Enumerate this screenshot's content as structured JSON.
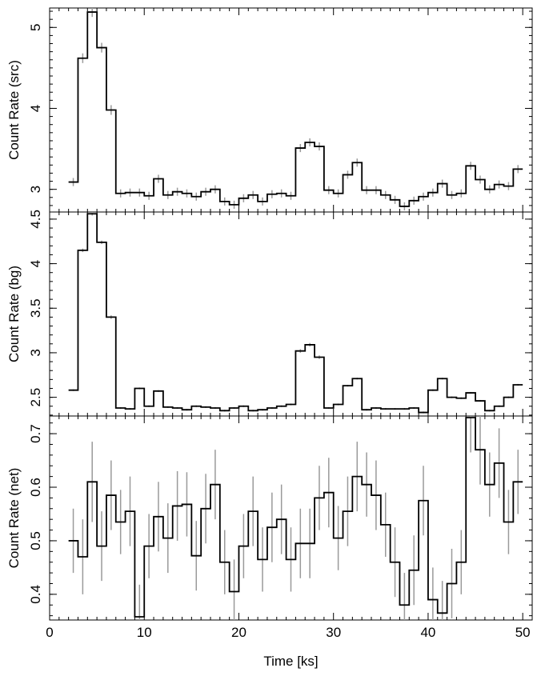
{
  "chart_data": [
    {
      "type": "line",
      "ylabel": "Count Rate (src)",
      "xlim": [
        0,
        51
      ],
      "ylim": [
        2.72,
        5.24
      ],
      "yticks": [
        3,
        4,
        5
      ],
      "y_minor_step": 0.1,
      "x": [
        2.5,
        3.5,
        4.5,
        5.5,
        6.5,
        7.5,
        8.5,
        9.5,
        10.5,
        11.5,
        12.5,
        13.5,
        14.5,
        15.5,
        16.5,
        17.5,
        18.5,
        19.5,
        20.5,
        21.5,
        22.5,
        23.5,
        24.5,
        25.5,
        26.5,
        27.5,
        28.5,
        29.5,
        30.5,
        31.5,
        32.5,
        33.5,
        34.5,
        35.5,
        36.5,
        37.5,
        38.5,
        39.5,
        40.5,
        41.5,
        42.5,
        43.5,
        44.5,
        45.5,
        46.5,
        47.5,
        48.5,
        49.5
      ],
      "values": [
        3.09,
        4.62,
        5.19,
        4.75,
        3.98,
        2.95,
        2.96,
        2.96,
        2.92,
        3.13,
        2.93,
        2.97,
        2.95,
        2.91,
        2.97,
        3.0,
        2.85,
        2.81,
        2.89,
        2.93,
        2.85,
        2.94,
        2.95,
        2.92,
        3.51,
        3.58,
        3.53,
        2.99,
        2.95,
        3.18,
        3.33,
        2.99,
        2.99,
        2.93,
        2.87,
        2.79,
        2.86,
        2.91,
        2.96,
        3.07,
        2.93,
        2.95,
        3.29,
        3.12,
        3.0,
        3.06,
        3.04,
        3.25
      ],
      "errors": [
        0.05,
        0.06,
        0.06,
        0.06,
        0.06,
        0.05,
        0.05,
        0.05,
        0.05,
        0.05,
        0.05,
        0.05,
        0.05,
        0.05,
        0.05,
        0.05,
        0.05,
        0.05,
        0.05,
        0.05,
        0.05,
        0.05,
        0.05,
        0.05,
        0.05,
        0.05,
        0.05,
        0.05,
        0.05,
        0.05,
        0.05,
        0.05,
        0.05,
        0.05,
        0.05,
        0.05,
        0.05,
        0.05,
        0.05,
        0.05,
        0.05,
        0.05,
        0.05,
        0.05,
        0.05,
        0.05,
        0.05,
        0.05
      ]
    },
    {
      "type": "line",
      "ylabel": "Count Rate (bg)",
      "xlim": [
        0,
        51
      ],
      "ylim": [
        2.29,
        4.58
      ],
      "yticks": [
        2.5,
        3,
        3.5,
        4,
        4.5
      ],
      "y_minor_step": 0.1,
      "x": [
        2.5,
        3.5,
        4.5,
        5.5,
        6.5,
        7.5,
        8.5,
        9.5,
        10.5,
        11.5,
        12.5,
        13.5,
        14.5,
        15.5,
        16.5,
        17.5,
        18.5,
        19.5,
        20.5,
        21.5,
        22.5,
        23.5,
        24.5,
        25.5,
        26.5,
        27.5,
        28.5,
        29.5,
        30.5,
        31.5,
        32.5,
        33.5,
        34.5,
        35.5,
        36.5,
        37.5,
        38.5,
        39.5,
        40.5,
        41.5,
        42.5,
        43.5,
        44.5,
        45.5,
        46.5,
        47.5,
        48.5,
        49.5
      ],
      "values": [
        2.58,
        4.15,
        4.56,
        4.24,
        3.4,
        2.38,
        2.37,
        2.6,
        2.4,
        2.57,
        2.39,
        2.38,
        2.36,
        2.4,
        2.39,
        2.38,
        2.35,
        2.38,
        2.4,
        2.35,
        2.36,
        2.38,
        2.4,
        2.42,
        3.02,
        3.09,
        2.95,
        2.38,
        2.42,
        2.63,
        2.71,
        2.36,
        2.38,
        2.37,
        2.37,
        2.37,
        2.38,
        2.33,
        2.58,
        2.71,
        2.5,
        2.49,
        2.55,
        2.46,
        2.35,
        2.4,
        2.5,
        2.64
      ],
      "errors": [
        0.01,
        0.02,
        0.02,
        0.02,
        0.02,
        0.01,
        0.01,
        0.01,
        0.01,
        0.01,
        0.01,
        0.01,
        0.01,
        0.01,
        0.01,
        0.01,
        0.01,
        0.01,
        0.01,
        0.01,
        0.01,
        0.01,
        0.01,
        0.01,
        0.02,
        0.02,
        0.02,
        0.01,
        0.01,
        0.01,
        0.01,
        0.01,
        0.01,
        0.01,
        0.01,
        0.01,
        0.01,
        0.01,
        0.01,
        0.01,
        0.01,
        0.01,
        0.01,
        0.01,
        0.01,
        0.01,
        0.01,
        0.01
      ]
    },
    {
      "type": "line",
      "ylabel": "Count Rate (net)",
      "xlabel": "Time [ks]",
      "xlim": [
        0,
        51
      ],
      "xticks": [
        0,
        10,
        20,
        30,
        40,
        50
      ],
      "ylim": [
        0.352,
        0.733
      ],
      "yticks": [
        0.4,
        0.5,
        0.6,
        0.7
      ],
      "y_minor_step": 0.02,
      "x": [
        2.5,
        3.5,
        4.5,
        5.5,
        6.5,
        7.5,
        8.5,
        9.5,
        10.5,
        11.5,
        12.5,
        13.5,
        14.5,
        15.5,
        16.5,
        17.5,
        18.5,
        19.5,
        20.5,
        21.5,
        22.5,
        23.5,
        24.5,
        25.5,
        26.5,
        27.5,
        28.5,
        29.5,
        30.5,
        31.5,
        32.5,
        33.5,
        34.5,
        35.5,
        36.5,
        37.5,
        38.5,
        39.5,
        40.5,
        41.5,
        42.5,
        43.5,
        44.5,
        45.5,
        46.5,
        47.5,
        48.5,
        49.5
      ],
      "values": [
        0.5,
        0.47,
        0.61,
        0.49,
        0.585,
        0.535,
        0.555,
        0.358,
        0.49,
        0.545,
        0.505,
        0.565,
        0.568,
        0.472,
        0.56,
        0.605,
        0.46,
        0.405,
        0.49,
        0.555,
        0.465,
        0.525,
        0.54,
        0.465,
        0.495,
        0.495,
        0.58,
        0.59,
        0.505,
        0.555,
        0.62,
        0.605,
        0.585,
        0.53,
        0.46,
        0.38,
        0.445,
        0.575,
        0.39,
        0.365,
        0.42,
        0.46,
        0.73,
        0.67,
        0.605,
        0.645,
        0.535,
        0.61
      ],
      "errors": [
        0.06,
        0.07,
        0.075,
        0.065,
        0.065,
        0.06,
        0.065,
        0.06,
        0.06,
        0.065,
        0.065,
        0.065,
        0.06,
        0.065,
        0.065,
        0.065,
        0.06,
        0.06,
        0.06,
        0.065,
        0.06,
        0.065,
        0.065,
        0.06,
        0.065,
        0.065,
        0.06,
        0.065,
        0.06,
        0.065,
        0.065,
        0.06,
        0.065,
        0.06,
        0.065,
        0.06,
        0.065,
        0.065,
        0.06,
        0.06,
        0.065,
        0.06,
        0.065,
        0.065,
        0.06,
        0.065,
        0.06,
        0.06
      ]
    }
  ]
}
